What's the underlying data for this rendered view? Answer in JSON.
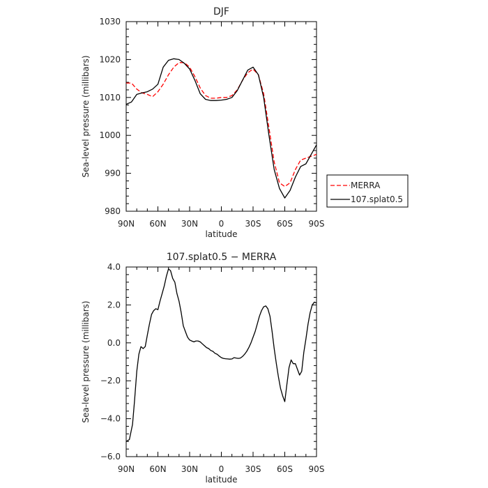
{
  "chart_data": [
    {
      "type": "line",
      "title": "DJF",
      "xlabel": "latitude",
      "ylabel": "Sea-level pressure (millibars)",
      "xlim": [
        90,
        -90
      ],
      "ylim": [
        980,
        1030
      ],
      "x_ticks": [
        90,
        60,
        30,
        0,
        -30,
        -60,
        -90
      ],
      "x_tick_labels": [
        "90N",
        "60N",
        "30N",
        "0",
        "30S",
        "60S",
        "90S"
      ],
      "y_ticks": [
        980,
        990,
        1000,
        1010,
        1020,
        1030
      ],
      "y_tick_labels": [
        "980",
        "990",
        "1000",
        "1010",
        "1020",
        "1030"
      ],
      "grid": false,
      "legend_position": "right",
      "series": [
        {
          "name": "MERRA",
          "color": "#ff0000",
          "style": "dashed",
          "x": [
            90,
            85,
            80,
            75,
            70,
            65,
            60,
            55,
            50,
            45,
            40,
            35,
            30,
            25,
            20,
            15,
            10,
            5,
            0,
            -5,
            -10,
            -15,
            -20,
            -25,
            -30,
            -35,
            -40,
            -45,
            -50,
            -55,
            -60,
            -65,
            -70,
            -75,
            -80,
            -85,
            -90
          ],
          "values": [
            1013.8,
            1013.8,
            1012.2,
            1011.2,
            1010.8,
            1010.2,
            1011.5,
            1013.5,
            1016.0,
            1018.0,
            1019.2,
            1019.2,
            1018.0,
            1015.5,
            1012.5,
            1010.5,
            1009.8,
            1009.8,
            1010.0,
            1010.0,
            1010.5,
            1012.0,
            1014.5,
            1016.5,
            1017.5,
            1016.0,
            1011.0,
            1002.0,
            993.0,
            987.5,
            986.5,
            987.5,
            991.0,
            993.5,
            994.0,
            994.5,
            995.0
          ]
        },
        {
          "name": "107.splat0.5",
          "color": "#000000",
          "style": "solid",
          "x": [
            90,
            85,
            80,
            75,
            70,
            65,
            60,
            55,
            50,
            45,
            40,
            35,
            30,
            25,
            20,
            15,
            10,
            5,
            0,
            -5,
            -10,
            -15,
            -20,
            -25,
            -30,
            -35,
            -40,
            -45,
            -50,
            -55,
            -60,
            -65,
            -70,
            -75,
            -80,
            -85,
            -90
          ],
          "values": [
            1008.2,
            1008.8,
            1010.8,
            1011.2,
            1011.5,
            1012.2,
            1013.5,
            1018.0,
            1019.8,
            1020.2,
            1020.0,
            1019.0,
            1017.5,
            1014.5,
            1011.0,
            1009.5,
            1009.2,
            1009.2,
            1009.3,
            1009.5,
            1010.0,
            1011.8,
            1014.5,
            1017.2,
            1018.0,
            1016.0,
            1010.0,
            1000.0,
            991.0,
            986.0,
            983.5,
            985.5,
            989.0,
            991.8,
            992.5,
            995.0,
            997.5
          ]
        }
      ]
    },
    {
      "type": "line",
      "title": "107.splat0.5 − MERRA",
      "xlabel": "latitude",
      "ylabel": "Sea-level pressure (millibars)",
      "xlim": [
        90,
        -90
      ],
      "ylim": [
        -6,
        4
      ],
      "x_ticks": [
        90,
        60,
        30,
        0,
        -30,
        -60,
        -90
      ],
      "x_tick_labels": [
        "90N",
        "60N",
        "30N",
        "0",
        "30S",
        "60S",
        "90S"
      ],
      "y_ticks": [
        -6,
        -4,
        -2,
        0,
        2,
        4
      ],
      "y_tick_labels": [
        "−6.0",
        "−4.0",
        "−2.0",
        "0.0",
        "2.0",
        "4.0"
      ],
      "grid": false,
      "series": [
        {
          "color": "#000000",
          "style": "solid",
          "x": [
            90,
            87,
            84,
            82,
            80,
            78,
            76,
            74,
            72,
            70,
            68,
            66,
            64,
            62,
            60,
            58,
            56,
            54,
            52,
            50,
            48,
            46,
            44,
            42,
            40,
            38,
            36,
            34,
            32,
            30,
            28,
            26,
            24,
            22,
            20,
            18,
            16,
            14,
            12,
            10,
            8,
            6,
            4,
            2,
            0,
            -2,
            -4,
            -6,
            -8,
            -10,
            -12,
            -14,
            -16,
            -18,
            -20,
            -22,
            -24,
            -26,
            -28,
            -30,
            -32,
            -34,
            -36,
            -38,
            -40,
            -42,
            -44,
            -46,
            -48,
            -50,
            -52,
            -54,
            -56,
            -58,
            -60,
            -62,
            -64,
            -66,
            -68,
            -70,
            -72,
            -74,
            -76,
            -78,
            -80,
            -82,
            -84,
            -86,
            -88,
            -90
          ],
          "values": [
            -5.2,
            -5.1,
            -4.3,
            -3.0,
            -1.5,
            -0.6,
            -0.2,
            -0.3,
            -0.2,
            0.4,
            1.0,
            1.5,
            1.7,
            1.8,
            1.75,
            2.2,
            2.6,
            3.0,
            3.5,
            3.9,
            3.8,
            3.4,
            3.2,
            2.6,
            2.2,
            1.6,
            0.9,
            0.6,
            0.3,
            0.15,
            0.1,
            0.05,
            0.1,
            0.1,
            0.05,
            -0.05,
            -0.15,
            -0.25,
            -0.3,
            -0.4,
            -0.45,
            -0.55,
            -0.6,
            -0.7,
            -0.78,
            -0.82,
            -0.84,
            -0.85,
            -0.86,
            -0.85,
            -0.78,
            -0.8,
            -0.82,
            -0.8,
            -0.72,
            -0.6,
            -0.45,
            -0.25,
            0.0,
            0.3,
            0.6,
            1.0,
            1.4,
            1.7,
            1.9,
            1.95,
            1.8,
            1.4,
            0.6,
            -0.3,
            -1.1,
            -1.8,
            -2.4,
            -2.8,
            -3.1,
            -2.2,
            -1.3,
            -0.9,
            -1.1,
            -1.1,
            -1.4,
            -1.7,
            -1.5,
            -0.5,
            0.2,
            1.0,
            1.6,
            2.0,
            2.15,
            2.1
          ]
        }
      ]
    }
  ]
}
